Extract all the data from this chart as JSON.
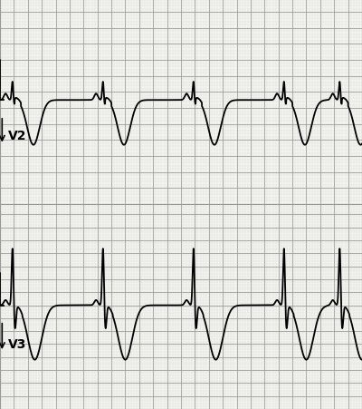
{
  "background_color": "#f5f5f0",
  "grid_major_color": "#999999",
  "grid_minor_color": "#cccccc",
  "ecg_color": "#000000",
  "fig_width": 4.0,
  "fig_height": 4.52,
  "dpi": 100,
  "v2_label": "V2",
  "v3_label": "V3",
  "label_fontsize": 10,
  "label_fontweight": "bold",
  "beat_period": 1.3,
  "total_time": 5.2,
  "v2_baseline": 0.0,
  "v3_baseline": 0.0
}
